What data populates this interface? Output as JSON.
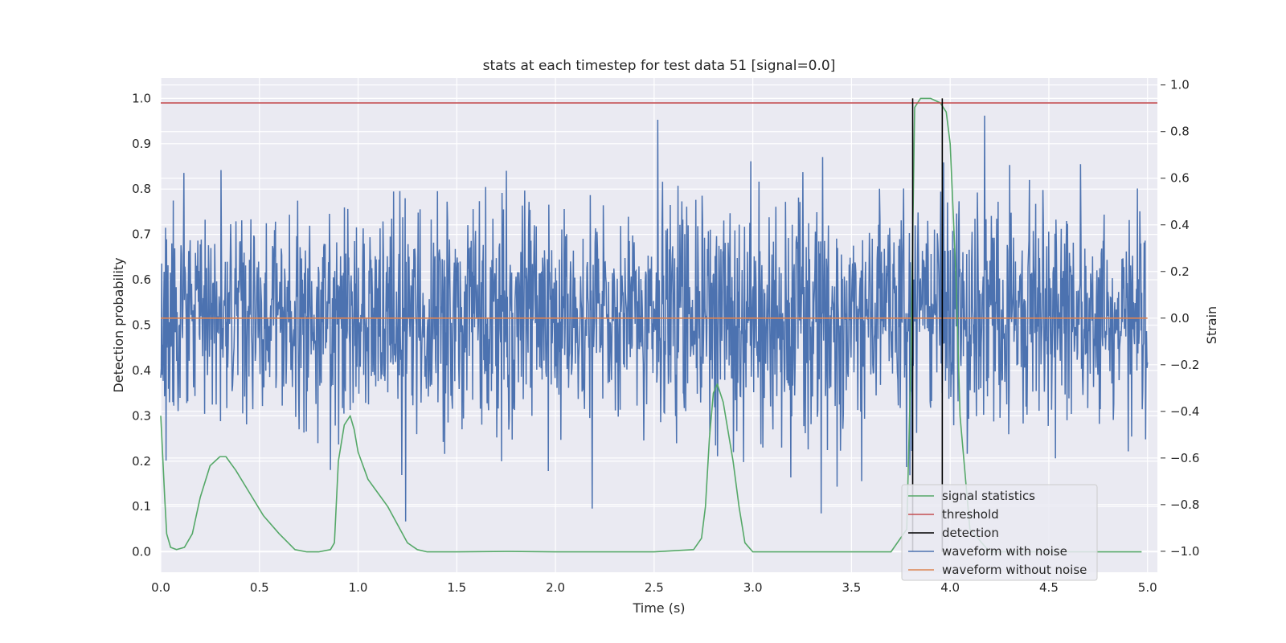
{
  "chart_data": {
    "type": "line",
    "title": "stats at each timestep for test data 51 [signal=0.0]",
    "xlabel": "Time (s)",
    "ylabel": "Detection probability",
    "y2label": "Strain",
    "xlim": [
      0.0,
      5.05
    ],
    "ylim": [
      -0.045,
      1.045
    ],
    "y2lim": [
      -1.09,
      1.03
    ],
    "xticks": [
      "0.0",
      "0.5",
      "1.0",
      "1.5",
      "2.0",
      "2.5",
      "3.0",
      "3.5",
      "4.0",
      "4.5",
      "5.0"
    ],
    "yticks": [
      "0.0",
      "0.1",
      "0.2",
      "0.3",
      "0.4",
      "0.5",
      "0.6",
      "0.7",
      "0.8",
      "0.9",
      "1.0"
    ],
    "y2ticks": [
      "−1.0",
      "−0.8",
      "−0.6",
      "−0.4",
      "−0.2",
      "0.0",
      "0.2",
      "0.4",
      "0.6",
      "0.8",
      "1.0"
    ],
    "grid": true,
    "legend_position": "lower-right",
    "colors": {
      "plot_bg": "#eaeaf2",
      "grid": "#ffffff",
      "signal_statistics": "#55a868",
      "threshold": "#c44e52",
      "detection": "#000000",
      "waveform_with_noise": "#4c72b0",
      "waveform_without_noise": "#dd8452"
    },
    "series": [
      {
        "name": "signal statistics",
        "axis": "left",
        "x": [
          0.0,
          0.02,
          0.03,
          0.05,
          0.08,
          0.12,
          0.16,
          0.2,
          0.25,
          0.3,
          0.33,
          0.38,
          0.45,
          0.52,
          0.6,
          0.68,
          0.74,
          0.8,
          0.86,
          0.88,
          0.9,
          0.93,
          0.96,
          0.98,
          1.0,
          1.05,
          1.1,
          1.15,
          1.2,
          1.25,
          1.3,
          1.35,
          1.5,
          1.75,
          2.0,
          2.25,
          2.5,
          2.7,
          2.74,
          2.76,
          2.78,
          2.8,
          2.82,
          2.85,
          2.9,
          2.93,
          2.96,
          3.0,
          3.05,
          3.2,
          3.5,
          3.7,
          3.78,
          3.8,
          3.82,
          3.85,
          3.9,
          3.95,
          3.98,
          4.0,
          4.03,
          4.05,
          4.1,
          4.2,
          4.5,
          4.8,
          4.97
        ],
        "values": [
          0.3,
          0.12,
          0.04,
          0.01,
          0.005,
          0.01,
          0.04,
          0.12,
          0.19,
          0.21,
          0.21,
          0.18,
          0.13,
          0.08,
          0.04,
          0.005,
          0.0,
          0.0,
          0.005,
          0.02,
          0.2,
          0.28,
          0.3,
          0.27,
          0.22,
          0.16,
          0.13,
          0.1,
          0.06,
          0.02,
          0.005,
          0.0,
          0.0,
          0.001,
          0.0,
          0.0,
          0.0,
          0.005,
          0.03,
          0.1,
          0.25,
          0.35,
          0.37,
          0.33,
          0.2,
          0.1,
          0.02,
          0.0,
          0.0,
          0.0,
          0.0,
          0.0,
          0.05,
          0.4,
          0.98,
          1.0,
          1.0,
          0.99,
          0.97,
          0.9,
          0.6,
          0.3,
          0.05,
          0.0,
          0.0,
          0.0,
          0.0
        ]
      },
      {
        "name": "threshold",
        "axis": "left",
        "x": [
          0.0,
          5.05
        ],
        "values": [
          0.99,
          0.99
        ]
      },
      {
        "name": "detection",
        "axis": "left",
        "segments": [
          {
            "x": 3.81,
            "y": [
              0.0,
              1.0
            ]
          },
          {
            "x": 3.96,
            "y": [
              0.0,
              1.0
            ]
          }
        ]
      },
      {
        "name": "waveform with noise",
        "axis": "right",
        "x_range": [
          0.0,
          5.0
        ],
        "samples": 2048,
        "approx_std": 0.25,
        "approx_extremes": {
          "max": 0.93,
          "min": -1.0
        }
      },
      {
        "name": "waveform without noise",
        "axis": "right",
        "x": [
          0.0,
          5.0
        ],
        "values": [
          0.0,
          0.0
        ]
      }
    ]
  }
}
